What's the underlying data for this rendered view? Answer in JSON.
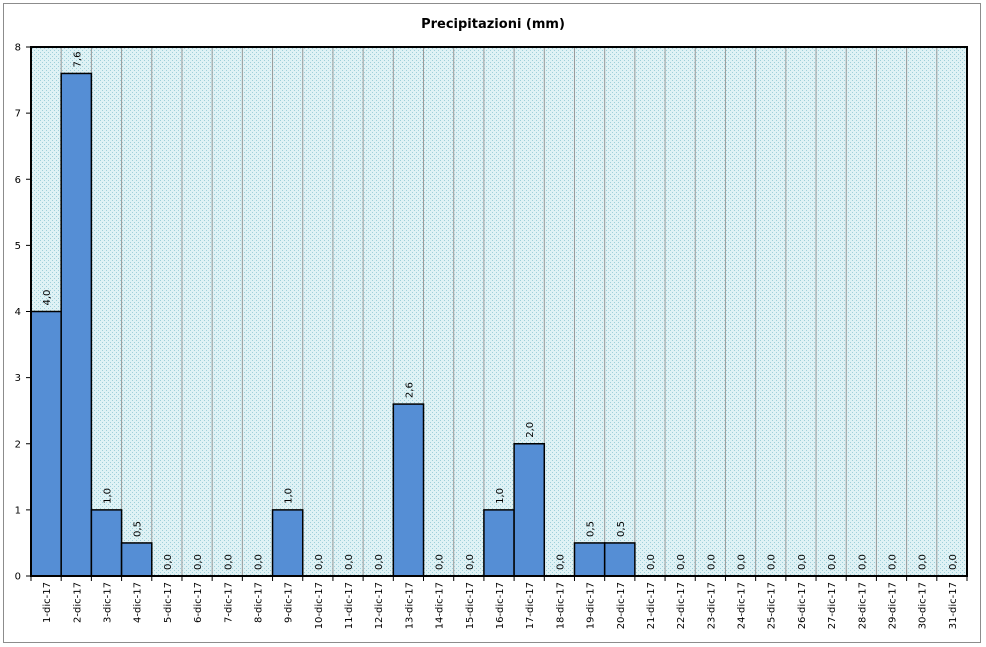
{
  "chart_data": {
    "type": "bar",
    "title": "Precipitazioni (mm)",
    "xlabel": "",
    "ylabel": "",
    "ylim": [
      0,
      8
    ],
    "yticks": [
      "0",
      "1",
      "2",
      "3",
      "4",
      "5",
      "6",
      "7",
      "8"
    ],
    "grid": "vertical",
    "legend": "none",
    "categories": [
      "1-dic-17",
      "2-dic-17",
      "3-dic-17",
      "4-dic-17",
      "5-dic-17",
      "6-dic-17",
      "7-dic-17",
      "8-dic-17",
      "9-dic-17",
      "10-dic-17",
      "11-dic-17",
      "12-dic-17",
      "13-dic-17",
      "14-dic-17",
      "15-dic-17",
      "16-dic-17",
      "17-dic-17",
      "18-dic-17",
      "19-dic-17",
      "20-dic-17",
      "21-dic-17",
      "22-dic-17",
      "23-dic-17",
      "24-dic-17",
      "25-dic-17",
      "26-dic-17",
      "27-dic-17",
      "28-dic-17",
      "29-dic-17",
      "30-dic-17",
      "31-dic-17"
    ],
    "values": [
      4.0,
      7.6,
      1.0,
      0.5,
      0,
      0,
      0,
      0,
      1.0,
      0,
      0,
      0,
      2.6,
      0,
      0,
      1.0,
      2.0,
      0,
      0.5,
      0.5,
      0,
      0,
      0,
      0,
      0,
      0,
      0,
      0,
      0,
      0,
      0
    ],
    "data_labels": [
      "4,0",
      "7,6",
      "1,0",
      "0,5",
      "0,0",
      "0,0",
      "0,0",
      "0,0",
      "1,0",
      "0,0",
      "0,0",
      "0,0",
      "2,6",
      "0,0",
      "0,0",
      "1,0",
      "2,0",
      "0,0",
      "0,5",
      "0,5",
      "0,0",
      "0,0",
      "0,0",
      "0,0",
      "0,0",
      "0,0",
      "0,0",
      "0,0",
      "0,0",
      "0,0",
      "0,0"
    ],
    "colors": {
      "bar_fill": "#558ed5",
      "bar_stroke": "#000000",
      "plot_background": "#d8eef2",
      "grid": "#999999"
    }
  }
}
